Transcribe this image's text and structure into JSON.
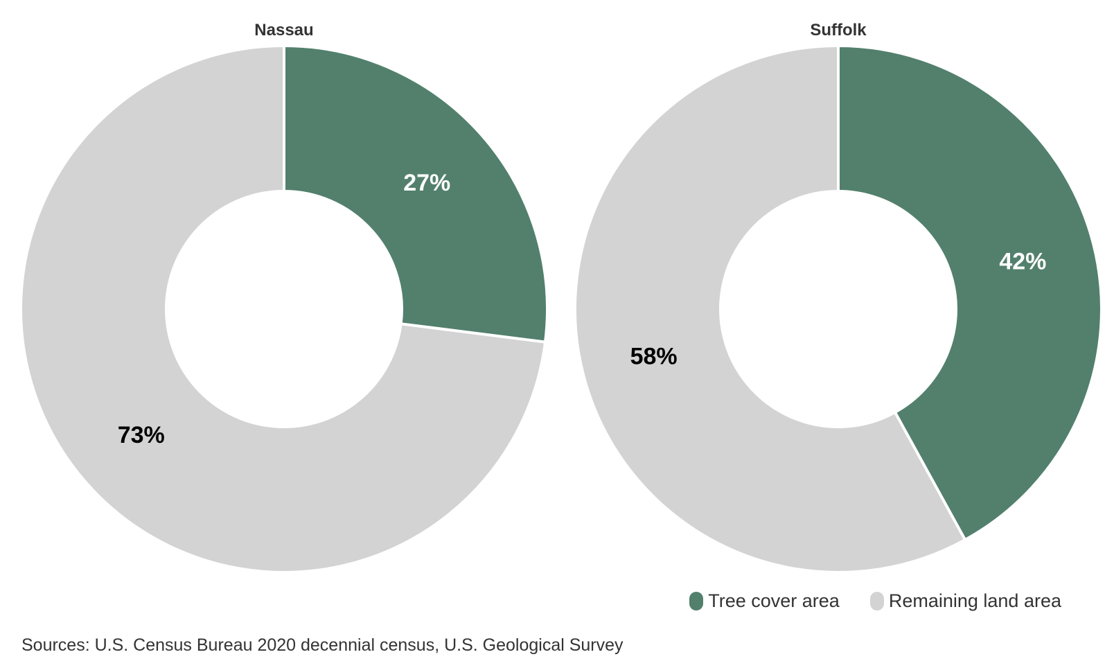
{
  "chart_data": [
    {
      "type": "pie",
      "title": "Nassau",
      "categories": [
        "Tree cover area",
        "Remaining land area"
      ],
      "values": [
        27,
        73
      ],
      "labels": [
        "27%",
        "73%"
      ],
      "colors": [
        "#52806D",
        "#D3D3D3"
      ],
      "label_colors": [
        "#ffffff",
        "#000000"
      ]
    },
    {
      "type": "pie",
      "title": "Suffolk",
      "categories": [
        "Tree cover area",
        "Remaining land area"
      ],
      "values": [
        42,
        58
      ],
      "labels": [
        "42%",
        "58%"
      ],
      "colors": [
        "#52806D",
        "#D3D3D3"
      ],
      "label_colors": [
        "#ffffff",
        "#000000"
      ]
    }
  ],
  "legend": {
    "placement": "bottom-right",
    "items": [
      {
        "label": "Tree cover area",
        "color": "#52806D"
      },
      {
        "label": "Remaining land area",
        "color": "#D3D3D3"
      }
    ]
  },
  "source": "Sources: U.S. Census Bureau 2020 decennial census, U.S. Geological Survey"
}
